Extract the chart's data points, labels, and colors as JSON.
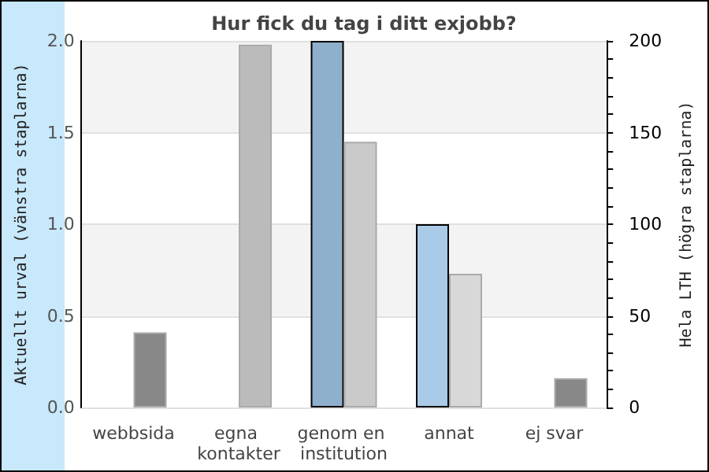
{
  "chart_data": {
    "type": "bar",
    "title": "Hur fick du tag i ditt exjobb?",
    "ylabel": "Aktuellt urval (vänstra staplarna)",
    "y2label": "Hela LTH (högra staplarna)",
    "categories": [
      "webbsida",
      "egna kontakter",
      "genom en institution",
      "annat",
      "ej svar"
    ],
    "series": [
      {
        "colors": [
          "#8eb0cc",
          "#8eb0cc",
          "#8eb0cc",
          "#a9cbe7",
          "#a9cbe7"
        ],
        "values": [
          0,
          0,
          2.0,
          1.0,
          0
        ]
      },
      {
        "axis": "y2",
        "colors": [
          "#888888",
          "#bbbbbb",
          "#cacaca",
          "#d8d8d8",
          "#888888"
        ],
        "values": [
          41,
          198,
          145,
          73,
          16
        ]
      }
    ],
    "ylim": [
      0,
      2.0
    ],
    "yticks": [
      {
        "value": 0,
        "label": "0.0"
      },
      0.5,
      {
        "value": 1,
        "label": "1.0"
      },
      1.5,
      {
        "value": 2,
        "label": "2.0"
      }
    ],
    "y2lim": [
      0,
      200
    ],
    "y2ticks": [
      0,
      {
        "value": 10,
        "label": null
      },
      {
        "value": 20,
        "label": null
      },
      {
        "value": 30,
        "label": null
      },
      {
        "value": 40,
        "label": null
      },
      50,
      {
        "value": 60,
        "label": null
      },
      {
        "value": 70,
        "label": null
      },
      {
        "value": 80,
        "label": null
      },
      {
        "value": 90,
        "label": null
      },
      100,
      {
        "value": 110,
        "label": null
      },
      {
        "value": 120,
        "label": null
      },
      {
        "value": 130,
        "label": null
      },
      {
        "value": 140,
        "label": null
      },
      150,
      {
        "value": 160,
        "label": null
      },
      {
        "value": 170,
        "label": null
      },
      {
        "value": 180,
        "label": null
      },
      {
        "value": 190,
        "label": null
      },
      200
    ],
    "grid": "y"
  }
}
